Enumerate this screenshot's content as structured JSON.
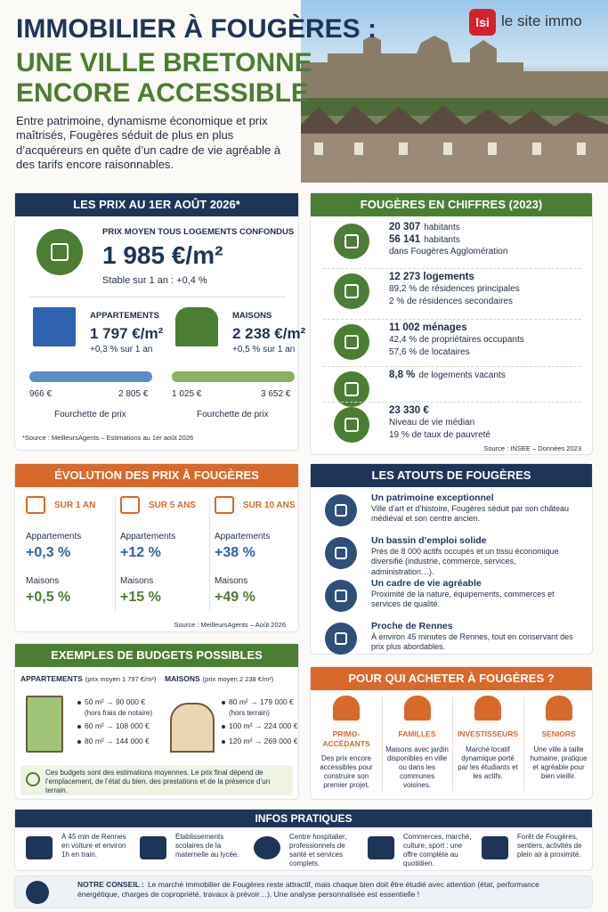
{
  "header": {
    "title": [
      "IMMOBILIER À FOUGÈRES :",
      "UNE VILLE BRETONNE",
      "ENCORE ACCESSIBLE"
    ],
    "intro": "Entre patrimoine, dynamisme économique et prix maîtrisés, Fougères séduit de plus en plus d’acquéreurs en quête d’un cadre de vie agréable à des tarifs encore raisonnables.",
    "logo_mark": "lsi",
    "logo_text": "le site immo"
  },
  "prices": {
    "title": "LES PRIX AU 1ER AOÛT 2026*",
    "average": {
      "label": "PRIX MOYEN TOUS LOGEMENTS CONFONDUS",
      "value": "1 985 €/m²",
      "change": "Stable sur 1 an : +0,4 %"
    },
    "types": [
      {
        "label": "APPARTEMENTS",
        "value": "1 797 €/m²",
        "change": "+0,3 % sur 1 an",
        "min": "966 €",
        "max": "2 805 €",
        "range_label": "Fourchette de prix"
      },
      {
        "label": "MAISONS",
        "value": "2 238 €/m²",
        "change": "+0,5 % sur 1 an",
        "min": "1 025 €",
        "max": "3 652 €",
        "range_label": "Fourchette de prix"
      }
    ],
    "source": "*Source : MeilleursAgents – Estimations au 1er août 2026"
  },
  "figures": {
    "title": "FOUGÈRES EN CHIFFRES (2023)",
    "items": [
      {
        "lines": [
          {
            "bold": "20 307",
            "text": "habitants"
          },
          {
            "bold": "56 141",
            "text": "habitants"
          },
          {
            "text": "dans Fougères Agglomération"
          }
        ]
      },
      {
        "lines": [
          {
            "bold": "12 273 logements"
          },
          {
            "text": "89,2 % de résidences principales"
          },
          {
            "text": "2 % de résidences secondaires"
          }
        ]
      },
      {
        "lines": [
          {
            "bold": "11 002 ménages"
          },
          {
            "text": "42,4 % de propriétaires occupants"
          },
          {
            "text": "57,6 % de locataires"
          }
        ]
      },
      {
        "lines": [
          {
            "bold": "8,8 %",
            "text": "de logements vacants"
          }
        ]
      },
      {
        "lines": [
          {
            "bold": "23 330 €"
          },
          {
            "text": "Niveau de vie médian"
          },
          {
            "text": "19 % de taux de pauvreté"
          }
        ]
      }
    ],
    "source": "Source : INSEE – Données 2023"
  },
  "evolution": {
    "title": "ÉVOLUTION DES PRIX À FOUGÈRES",
    "periods": [
      {
        "label": "SUR 1 AN",
        "rows": [
          {
            "type": "Appartements",
            "value": "+0,3 %"
          },
          {
            "type": "Maisons",
            "value": "+0,5 %"
          }
        ]
      },
      {
        "label": "SUR 5 ANS",
        "rows": [
          {
            "type": "Appartements",
            "value": "+12 %"
          },
          {
            "type": "Maisons",
            "value": "+15 %"
          }
        ]
      },
      {
        "label": "SUR 10 ANS",
        "rows": [
          {
            "type": "Appartements",
            "value": "+38 %"
          },
          {
            "type": "Maisons",
            "value": "+49 %"
          }
        ]
      }
    ],
    "source": "Source : MeilleursAgents – Août 2026"
  },
  "assets": {
    "title": "LES ATOUTS DE FOUGÈRES",
    "items": [
      {
        "title": "Un patrimoine exceptionnel",
        "text": "Ville d’art et d’histoire, Fougères séduit par son château médiéval et son centre ancien."
      },
      {
        "title": "Un bassin d’emploi solide",
        "text": "Près de 8 000 actifs occupés et un tissu économique diversifié (industrie, commerce, services, administration…)."
      },
      {
        "title": "Un cadre de vie agréable",
        "text": "Proximité de la nature, équipements, commerces et services de qualité."
      },
      {
        "title": "Proche de Rennes",
        "text": "À environ 45 minutes de Rennes, tout en conservant des prix plus abordables."
      }
    ]
  },
  "budgets": {
    "title": "EXEMPLES DE BUDGETS POSSIBLES",
    "groups": [
      {
        "label": "APPARTEMENTS",
        "sub": "(prix moyen 1 797 €/m²)",
        "lines": [
          {
            "text": "50 m² → 90 000 €",
            "note": "(hors frais de notaire)"
          },
          {
            "text": "60 m² → 108 000 €"
          },
          {
            "text": "80 m² → 144 000 €"
          }
        ]
      },
      {
        "label": "MAISONS",
        "sub": "(prix moyen 2 238 €/m²)",
        "lines": [
          {
            "text": "80 m² → 179 000 €",
            "note": "(hors terrain)"
          },
          {
            "text": "100 m² → 224 000 €"
          },
          {
            "text": "120 m² → 269 000 €"
          }
        ]
      }
    ],
    "note": "Ces budgets sont des estimations moyennes. Le prix final dépend de l’emplacement, de l’état du bien, des prestations et de la présence d’un terrain."
  },
  "audience": {
    "title": "POUR QUI ACHETER À FOUGÈRES ?",
    "items": [
      {
        "title": "PRIMO-ACCÉDANTS",
        "text": "Des prix encore accessibles pour construire son premier projet."
      },
      {
        "title": "FAMILLES",
        "text": "Maisons avec jardin disponibles en ville ou dans les communes voisines."
      },
      {
        "title": "INVESTISSEURS",
        "text": "Marché locatif dynamique porté par les étudiants et les actifs."
      },
      {
        "title": "SENIORS",
        "text": "Une ville à taille humaine, pratique et agréable pour bien vieillir."
      }
    ]
  },
  "practical": {
    "title": "INFOS PRATIQUES",
    "items": [
      "À 45 min de Rennes en voiture et environ 1h en train.",
      "Établissements scolaires de la maternelle au lycée.",
      "Centre hospitalier, professionnels de santé et services complets.",
      "Commerces, marché, culture, sport : une offre complète au quotidien.",
      "Forêt de Fougères, sentiers, activités de plein air à proximité."
    ]
  },
  "advice": {
    "label": "NOTRE CONSEIL :",
    "text": "Le marché immobilier de Fougères reste attractif, mais chaque bien doit être étudié avec attention (état, performance énergétique, charges de copropriété, travaux à prévoir…). Une analyse personnalisée est essentielle !"
  }
}
